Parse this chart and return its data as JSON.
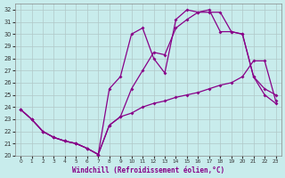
{
  "xlabel": "Windchill (Refroidissement éolien,°C)",
  "bg_color": "#c8ecec",
  "grid_color": "#b0c8c8",
  "line_color": "#880088",
  "xlim": [
    -0.5,
    23.5
  ],
  "ylim": [
    20,
    32.5
  ],
  "xticks": [
    0,
    1,
    2,
    3,
    4,
    5,
    6,
    7,
    8,
    9,
    10,
    11,
    12,
    13,
    14,
    15,
    16,
    17,
    18,
    19,
    20,
    21,
    22,
    23
  ],
  "yticks": [
    20,
    21,
    22,
    23,
    24,
    25,
    26,
    27,
    28,
    29,
    30,
    31,
    32
  ],
  "line1_x": [
    0,
    1,
    2,
    3,
    4,
    5,
    6,
    7,
    8,
    9,
    10,
    11,
    12,
    13,
    14,
    15,
    16,
    17,
    18,
    19,
    20,
    21,
    22,
    23
  ],
  "line1_y": [
    23.8,
    23.0,
    22.0,
    21.5,
    21.2,
    21.0,
    20.6,
    20.1,
    22.5,
    23.2,
    23.5,
    24.0,
    24.3,
    24.5,
    24.8,
    25.0,
    25.2,
    25.5,
    25.8,
    26.0,
    26.5,
    27.8,
    27.8,
    24.5
  ],
  "line2_x": [
    0,
    1,
    2,
    3,
    4,
    5,
    6,
    7,
    8,
    9,
    10,
    11,
    12,
    13,
    14,
    15,
    16,
    17,
    18,
    19,
    20,
    21,
    22,
    23
  ],
  "line2_y": [
    23.8,
    23.0,
    22.0,
    21.5,
    21.2,
    21.0,
    20.6,
    20.1,
    22.5,
    23.2,
    25.5,
    27.0,
    28.5,
    28.3,
    30.5,
    31.2,
    31.8,
    31.8,
    31.8,
    30.2,
    30.0,
    26.5,
    25.0,
    24.3
  ],
  "line3_x": [
    0,
    1,
    2,
    3,
    4,
    5,
    6,
    7,
    8,
    9,
    10,
    11,
    12,
    13,
    14,
    15,
    16,
    17,
    18,
    19,
    20,
    21,
    22,
    23
  ],
  "line3_y": [
    23.8,
    23.0,
    22.0,
    21.5,
    21.2,
    21.0,
    20.6,
    20.1,
    25.5,
    26.5,
    30.0,
    30.5,
    28.0,
    26.8,
    31.2,
    32.0,
    31.8,
    32.0,
    30.2,
    30.2,
    30.0,
    26.5,
    25.5,
    25.0
  ]
}
